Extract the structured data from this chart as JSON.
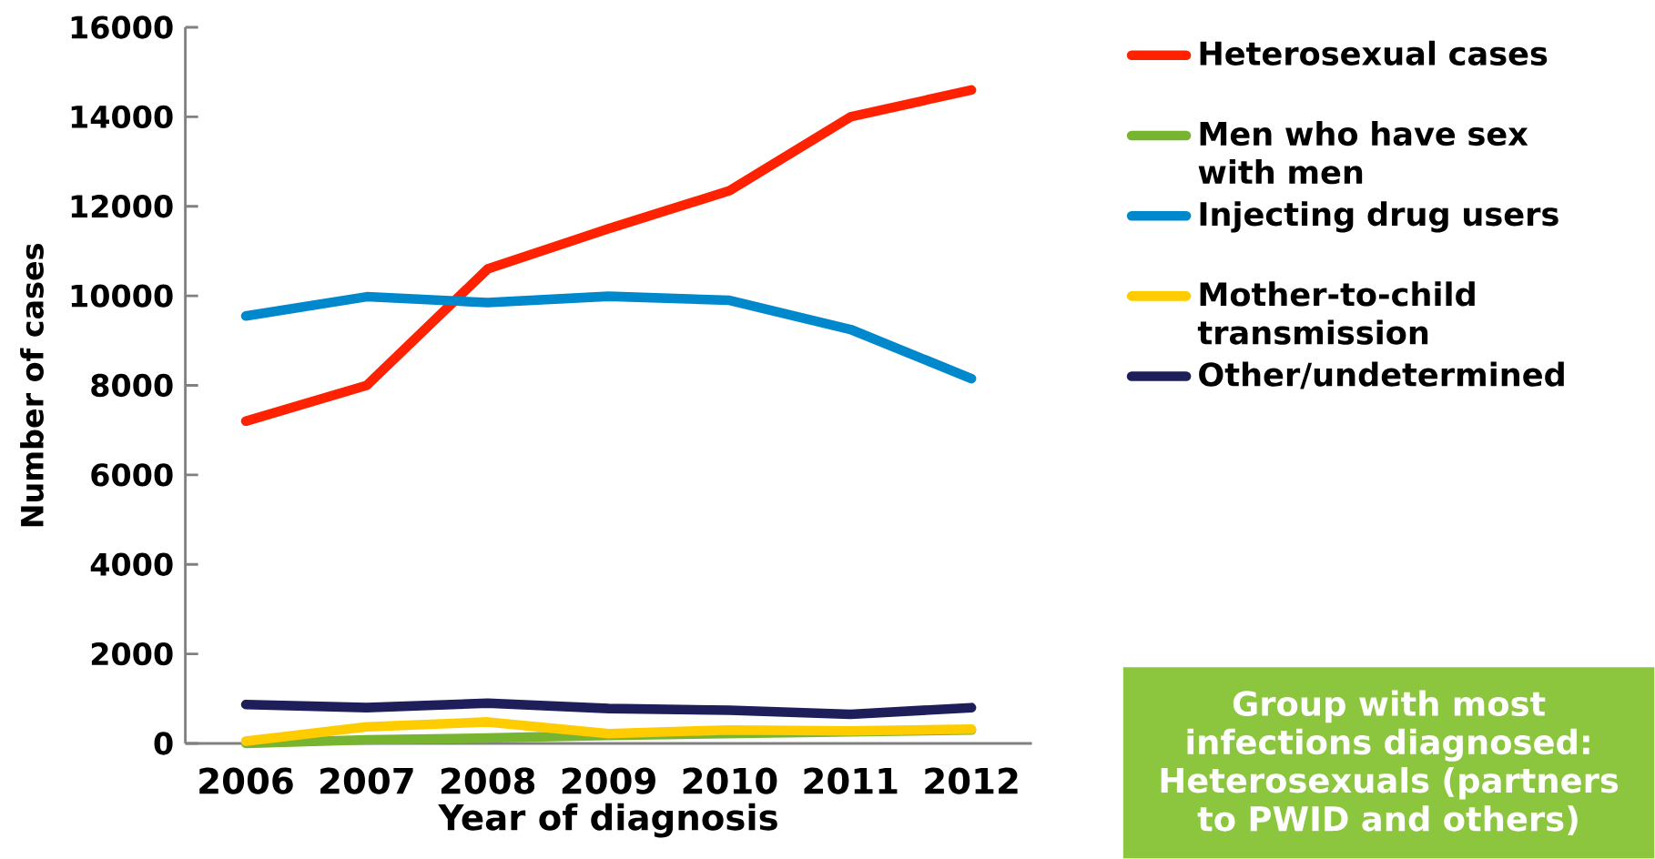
{
  "chart_data": {
    "type": "line",
    "xlabel": "Year of diagnosis",
    "ylabel": "Number of cases",
    "categories": [
      "2006",
      "2007",
      "2008",
      "2009",
      "2010",
      "2011",
      "2012"
    ],
    "series": [
      {
        "name": "Heterosexual cases",
        "color": "#ff2200",
        "values": [
          7200,
          8000,
          10600,
          11500,
          12350,
          14000,
          14600
        ]
      },
      {
        "name": "Men who have sex with men",
        "color": "#77b530",
        "values": [
          0,
          80,
          120,
          180,
          220,
          260,
          300
        ]
      },
      {
        "name": "Injecting drug users",
        "color": "#0088cc",
        "values": [
          9550,
          9980,
          9850,
          9990,
          9900,
          9250,
          8150
        ]
      },
      {
        "name": "Mother-to-child transmission",
        "color": "#ffcc00",
        "values": [
          50,
          370,
          480,
          220,
          300,
          280,
          320
        ]
      },
      {
        "name": "Other/undetermined",
        "color": "#1e1f5a",
        "values": [
          870,
          800,
          900,
          780,
          740,
          650,
          800
        ]
      }
    ],
    "ylim": [
      0,
      16000
    ],
    "yticks": [
      0,
      2000,
      4000,
      6000,
      8000,
      10000,
      12000,
      14000,
      16000
    ],
    "grid": false,
    "legend": "right",
    "marker": "none",
    "line_style": "solid",
    "annotations": [
      "Group with most infections diagnosed: Heterosexuals (partners to PWID and others)"
    ]
  }
}
